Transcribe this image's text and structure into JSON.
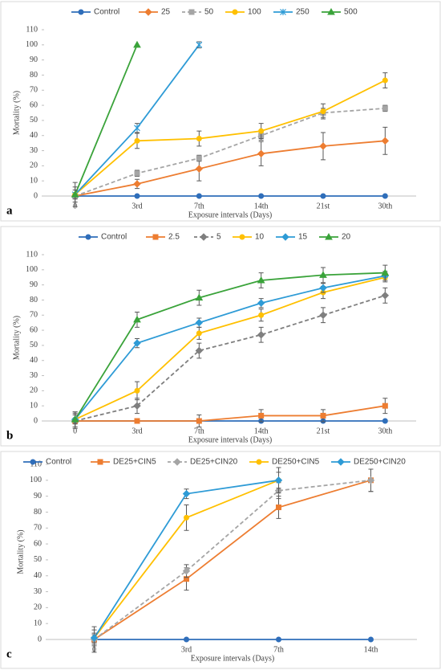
{
  "chart_data": [
    {
      "type": "line",
      "label": "a",
      "ylabel": "Mortality (%)",
      "xlabel": "Exposure intervals (Days)",
      "categories": [
        "0",
        "3rd",
        "7th",
        "14th",
        "21st",
        "30th"
      ],
      "ylim": [
        0,
        110
      ],
      "yticks": [
        0,
        10,
        20,
        30,
        40,
        50,
        60,
        70,
        80,
        90,
        100,
        110
      ],
      "legend": "top",
      "series": [
        {
          "name": "Control",
          "color": "#2f6eba",
          "marker": "circle",
          "values": [
            0,
            0,
            0,
            0,
            0,
            0
          ],
          "errors": [
            0,
            0,
            0,
            0,
            0,
            0
          ]
        },
        {
          "name": "25",
          "color": "#ed7d31",
          "marker": "diamond",
          "values": [
            0,
            8,
            18,
            28,
            33,
            36.5
          ],
          "errors": [
            0,
            3,
            8,
            8,
            9,
            9
          ]
        },
        {
          "name": "50",
          "color": "#a5a5a5",
          "marker": "square",
          "dashed": true,
          "values": [
            0,
            15,
            25,
            40,
            55,
            58
          ],
          "errors": [
            0,
            2,
            2,
            3,
            3,
            2
          ]
        },
        {
          "name": "100",
          "color": "#ffc000",
          "marker": "circle",
          "values": [
            1,
            36.5,
            38,
            43,
            56,
            76.5
          ],
          "errors": [
            5,
            5,
            5,
            5,
            5,
            5
          ]
        },
        {
          "name": "250",
          "color": "#2e9bd6",
          "marker": "star",
          "values": [
            1,
            45,
            100,
            null,
            null,
            null
          ],
          "errors": [
            8,
            3,
            2,
            null,
            null,
            null
          ]
        },
        {
          "name": "500",
          "color": "#3aa33a",
          "marker": "triangle",
          "values": [
            1,
            100,
            null,
            null,
            null,
            null
          ],
          "errors": [
            3,
            0,
            null,
            null,
            null,
            null
          ]
        }
      ]
    },
    {
      "type": "line",
      "label": "b",
      "ylabel": "Mortality (%)",
      "xlabel": "Exposure intervals (Days)",
      "categories": [
        "0",
        "3rd",
        "7th",
        "14th",
        "21st",
        "30th"
      ],
      "ylim": [
        0,
        110
      ],
      "yticks": [
        0,
        10,
        20,
        30,
        40,
        50,
        60,
        70,
        80,
        90,
        100,
        110
      ],
      "legend": "top",
      "series": [
        {
          "name": "Control",
          "color": "#2f6eba",
          "marker": "circle",
          "values": [
            0,
            0,
            0,
            0,
            0,
            0
          ],
          "errors": [
            0,
            0,
            0,
            0,
            0,
            0
          ]
        },
        {
          "name": "2.5",
          "color": "#ed7d31",
          "marker": "square",
          "values": [
            0,
            0,
            0,
            3.5,
            3.5,
            10
          ],
          "errors": [
            0,
            0,
            4,
            4,
            4,
            5
          ]
        },
        {
          "name": "5",
          "color": "#7f7f7f",
          "marker": "diamond",
          "dashed": true,
          "values": [
            0,
            10,
            46.5,
            57,
            70,
            83
          ],
          "errors": [
            5,
            5,
            5,
            5,
            5,
            5
          ]
        },
        {
          "name": "10",
          "color": "#ffc000",
          "marker": "circle",
          "values": [
            1,
            20,
            58,
            70,
            85,
            95
          ],
          "errors": [
            5,
            6,
            4,
            4,
            4,
            3
          ]
        },
        {
          "name": "15",
          "color": "#2e9bd6",
          "marker": "diamond",
          "values": [
            1,
            51.5,
            65,
            78,
            88,
            96
          ],
          "errors": [
            3,
            3,
            3,
            3,
            3,
            3
          ]
        },
        {
          "name": "20",
          "color": "#3aa33a",
          "marker": "triangle",
          "values": [
            1,
            67,
            81.5,
            93,
            96.5,
            98
          ],
          "errors": [
            5,
            5,
            5,
            5,
            5,
            5
          ]
        }
      ]
    },
    {
      "type": "line",
      "label": "c",
      "ylabel": "Mortality (%)",
      "xlabel": "Exposure intervals (Days)",
      "categories": [
        "0",
        "3rd",
        "7th",
        "14th"
      ],
      "ylim": [
        0,
        110
      ],
      "yticks": [
        0,
        10,
        20,
        30,
        40,
        50,
        60,
        70,
        80,
        90,
        100,
        110
      ],
      "legend": "top",
      "series": [
        {
          "name": "Control",
          "color": "#2f6eba",
          "marker": "circle",
          "values": [
            0,
            0,
            0,
            0
          ],
          "errors": [
            0,
            0,
            0,
            0
          ]
        },
        {
          "name": "DE25+CIN5",
          "color": "#ed7d31",
          "marker": "square",
          "values": [
            0,
            38,
            83,
            100
          ],
          "errors": [
            3,
            7,
            7,
            7
          ]
        },
        {
          "name": "DE25+CIN20",
          "color": "#a5a5a5",
          "marker": "diamond",
          "dashed": true,
          "values": [
            0,
            43,
            93.5,
            100
          ],
          "errors": [
            8,
            4,
            5,
            7
          ]
        },
        {
          "name": "DE250+CIN5",
          "color": "#ffc000",
          "marker": "circle",
          "values": [
            1,
            76.5,
            100,
            null
          ],
          "errors": [
            5,
            8,
            5,
            null
          ]
        },
        {
          "name": "DE250+CIN20",
          "color": "#2e9bd6",
          "marker": "diamond",
          "values": [
            1,
            91.5,
            100,
            null
          ],
          "errors": [
            3,
            3,
            8,
            null
          ]
        }
      ]
    }
  ]
}
